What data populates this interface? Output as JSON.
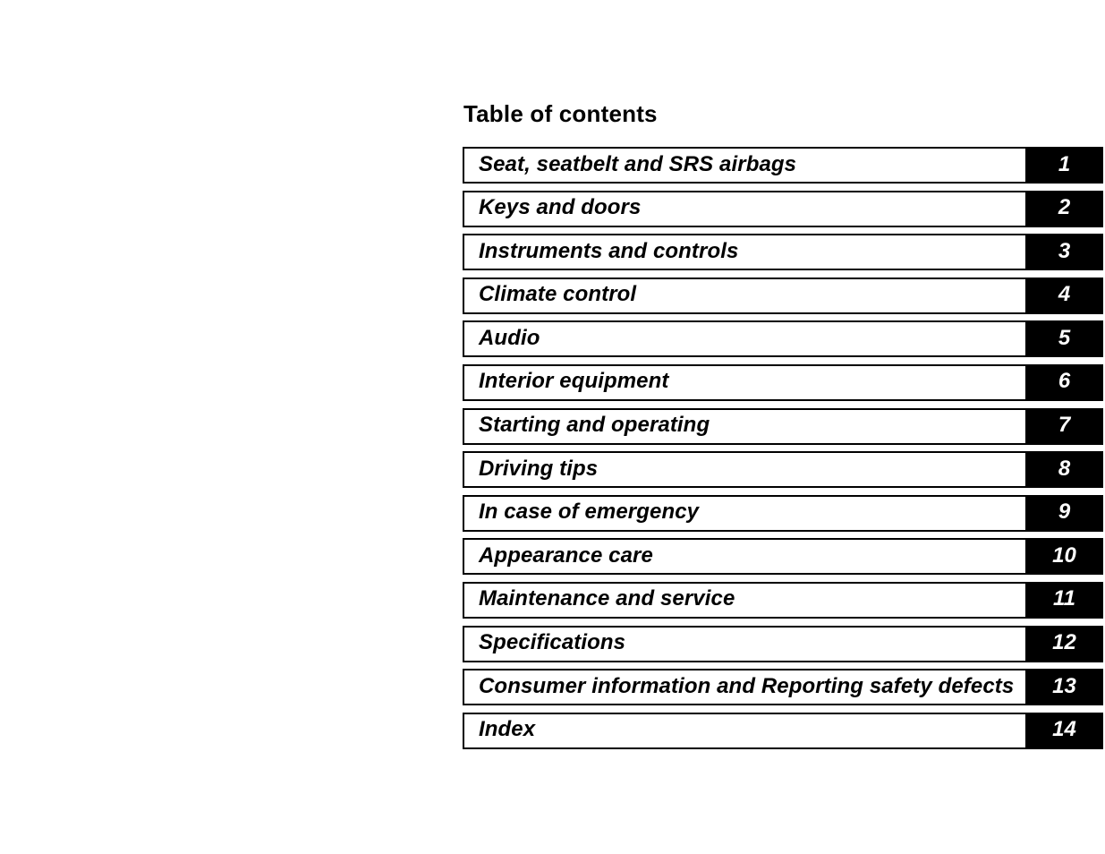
{
  "page": {
    "title": "Table of contents"
  },
  "toc": {
    "items": [
      {
        "label": "Seat, seatbelt and SRS airbags",
        "chapter": "1"
      },
      {
        "label": "Keys and doors",
        "chapter": "2"
      },
      {
        "label": "Instruments and controls",
        "chapter": "3"
      },
      {
        "label": "Climate control",
        "chapter": "4"
      },
      {
        "label": "Audio",
        "chapter": "5"
      },
      {
        "label": "Interior equipment",
        "chapter": "6"
      },
      {
        "label": "Starting and operating",
        "chapter": "7"
      },
      {
        "label": "Driving tips",
        "chapter": "8"
      },
      {
        "label": "In case of emergency",
        "chapter": "9"
      },
      {
        "label": "Appearance care",
        "chapter": "10"
      },
      {
        "label": "Maintenance and service",
        "chapter": "11"
      },
      {
        "label": "Specifications",
        "chapter": "12"
      },
      {
        "label": "Consumer information and Reporting safety defects",
        "chapter": "13"
      },
      {
        "label": "Index",
        "chapter": "14"
      }
    ]
  },
  "colors": {
    "page_bg": "#ffffff",
    "text": "#000000",
    "row_border": "#000000",
    "chapter_box_bg": "#000000",
    "chapter_number_text": "#ffffff"
  }
}
